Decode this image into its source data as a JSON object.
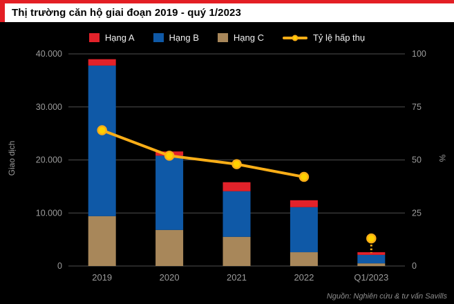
{
  "page": {
    "title": "Thị trường căn hộ giai đoạn 2019 - quý 1/2023",
    "source_note": "Nguồn: Nghiên cứu & tư vấn Savills",
    "accent_color": "#e31e24",
    "background_color": "#000000"
  },
  "legend": {
    "items": [
      {
        "label": "Hạng A",
        "color": "#e2222a"
      },
      {
        "label": "Hạng B",
        "color": "#0f59a7"
      },
      {
        "label": "Hạng C",
        "color": "#a8875a"
      },
      {
        "label": "Tỷ lệ hấp thụ",
        "color": "#fbae17",
        "marker_fill": "#ffd100"
      }
    ]
  },
  "chart_data": {
    "type": "bar",
    "subtype": "stacked-bars-with-line-overlay",
    "title": "Thị trường căn hộ giai đoạn 2019 - quý 1/2023",
    "categories": [
      "2019",
      "2020",
      "2021",
      "2022",
      "Q1/2023"
    ],
    "series": [
      {
        "name": "Hạng A",
        "type": "bar",
        "color": "#e2222a",
        "values": [
          1200,
          800,
          1700,
          1300,
          500
        ]
      },
      {
        "name": "Hạng B",
        "type": "bar",
        "color": "#0f59a7",
        "values": [
          28400,
          14000,
          8600,
          8500,
          1600
        ]
      },
      {
        "name": "Hạng C",
        "type": "bar",
        "color": "#a8875a",
        "values": [
          9400,
          6800,
          5500,
          2600,
          500
        ]
      },
      {
        "name": "Tỷ lệ hấp thụ",
        "type": "line",
        "axis": "right",
        "color": "#fbae17",
        "marker_fill": "#ffd100",
        "values": [
          64,
          52,
          48,
          42,
          13
        ],
        "connected_indices": [
          0,
          1,
          2,
          3
        ],
        "isolated_indices": [
          4
        ]
      }
    ],
    "stack_order_bottom_to_top": [
      "Hạng C",
      "Hạng B",
      "Hạng A"
    ],
    "left_axis": {
      "label": "Giao dịch",
      "min": 0,
      "max": 40000,
      "ticks": [
        "0",
        "10.000",
        "20.000",
        "30.000",
        "40.000"
      ]
    },
    "right_axis": {
      "label": "%",
      "min": 0,
      "max": 100,
      "ticks": [
        "0",
        "25",
        "50",
        "75",
        "100"
      ]
    },
    "grid": true,
    "gridline_color": "#4f4f4f",
    "tick_text_color": "#9c9c9c",
    "legend_position": "top"
  }
}
